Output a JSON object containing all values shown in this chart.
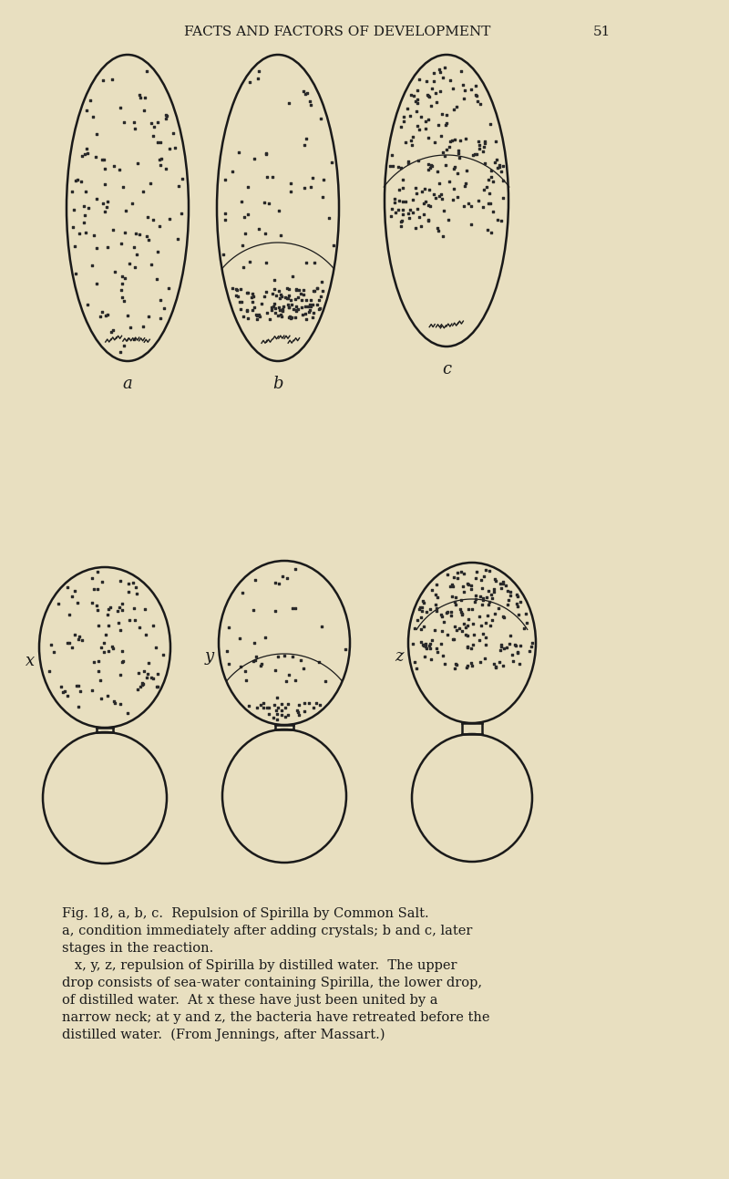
{
  "bg_color": "#e8dfc0",
  "line_color": "#1a1a1a",
  "dot_color": "#2a2a2a",
  "header_text": "FACTS AND FACTORS OF DEVELOPMENT",
  "page_num": "51",
  "fig_width": 8.0,
  "fig_height": 12.93,
  "caption_lines": [
    "Fig. 18, a, b, c.  Repulsion of Spirilla by Common Salt.",
    "a, condition immediately after adding crystals; b and c, later",
    "stages in the reaction.",
    "   x, y, z, repulsion of Spirilla by distilled water.  The upper",
    "drop consists of sea-water containing Spirilla, the lower drop,",
    "of distilled water.  At x these have just been united by a",
    "narrow neck; at y and z, the bacteria have retreated before the",
    "distilled water.  (From Jennings, after Massart.)"
  ]
}
